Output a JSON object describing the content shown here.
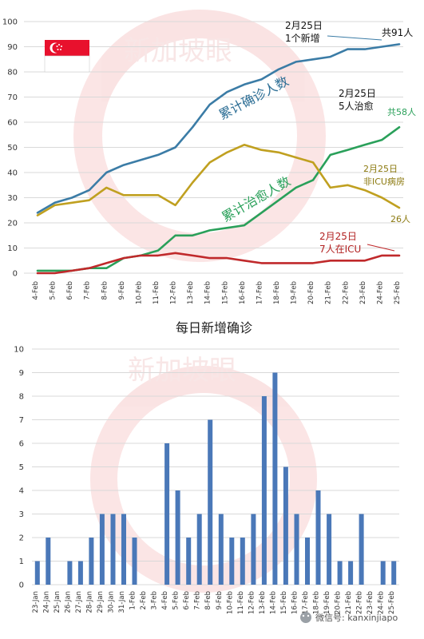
{
  "chart_data": [
    {
      "type": "line",
      "x": [
        "4-Feb",
        "5-Feb",
        "6-Feb",
        "7-Feb",
        "8-Feb",
        "9-Feb",
        "10-Feb",
        "11-Feb",
        "12-Feb",
        "13-Feb",
        "14-Feb",
        "15-Feb",
        "16-Feb",
        "17-Feb",
        "18-Feb",
        "19-Feb",
        "20-Feb",
        "21-Feb",
        "22-Feb",
        "23-Feb",
        "24-Feb",
        "25-Feb"
      ],
      "ylim": [
        0,
        100
      ],
      "yticks": [
        0,
        10,
        20,
        30,
        40,
        50,
        60,
        70,
        80,
        90,
        100
      ],
      "series": [
        {
          "name": "累计确诊人数",
          "color": "#3b7ca6",
          "values": [
            24,
            28,
            30,
            33,
            40,
            43,
            45,
            47,
            50,
            58,
            67,
            72,
            75,
            77,
            81,
            84,
            85,
            86,
            89,
            89,
            90,
            91
          ]
        },
        {
          "name": "累计治愈人数",
          "color": "#2aa05a",
          "values": [
            1,
            1,
            1,
            2,
            2,
            6,
            7,
            9,
            15,
            15,
            17,
            18,
            19,
            24,
            29,
            34,
            37,
            47,
            49,
            51,
            53,
            58
          ]
        },
        {
          "name": "",
          "color": "#c0a020",
          "values": [
            23,
            27,
            28,
            29,
            34,
            31,
            31,
            31,
            27,
            36,
            44,
            48,
            51,
            49,
            48,
            46,
            44,
            34,
            35,
            33,
            30,
            26
          ]
        },
        {
          "name": "",
          "color": "#c0292b",
          "values": [
            0,
            0,
            1,
            2,
            4,
            6,
            7,
            7,
            8,
            7,
            6,
            6,
            5,
            4,
            4,
            4,
            4,
            5,
            5,
            5,
            7,
            7
          ]
        }
      ],
      "annotations": {
        "confirmed_date": "2月25日",
        "confirmed_note": "1个新增",
        "confirmed_total": "共91人",
        "recovered_date": "2月25日",
        "recovered_note": "5人治愈",
        "recovered_total": "共58人",
        "ward_date": "2月25日",
        "ward_note": "非ICU病房",
        "ward_total": "26人",
        "icu_date": "2月25日",
        "icu_note": "7人在ICU"
      }
    },
    {
      "type": "bar",
      "title": "每日新增确诊",
      "color": "#4a78b8",
      "categories": [
        "23-Jan",
        "24-Jan",
        "25-Jan",
        "26-Jan",
        "27-Jan",
        "28-Jan",
        "29-Jan",
        "30-Jan",
        "31-Jan",
        "1-Feb",
        "2-Feb",
        "3-Feb",
        "4-Feb",
        "5-Feb",
        "6-Feb",
        "7-Feb",
        "8-Feb",
        "9-Feb",
        "10-Feb",
        "11-Feb",
        "12-Feb",
        "13-Feb",
        "14-Feb",
        "15-Feb",
        "16-Feb",
        "17-Feb",
        "18-Feb",
        "19-Feb",
        "20-Feb",
        "21-Feb",
        "22-Feb",
        "23-Feb",
        "24-Feb",
        "25-Feb"
      ],
      "values": [
        1,
        2,
        0,
        1,
        1,
        2,
        3,
        3,
        3,
        2,
        0,
        0,
        6,
        4,
        2,
        3,
        7,
        3,
        2,
        2,
        3,
        8,
        9,
        5,
        3,
        2,
        4,
        3,
        1,
        1,
        3,
        0,
        1,
        1
      ],
      "ylim": [
        0,
        10
      ],
      "yticks": [
        0,
        1,
        2,
        3,
        4,
        5,
        6,
        7,
        8,
        9,
        10
      ]
    }
  ],
  "watermark": "新加坡眼",
  "footer": "微信号: kanxinjiapo",
  "flag_colors": {
    "red": "#e8112d",
    "white": "#ffffff"
  }
}
